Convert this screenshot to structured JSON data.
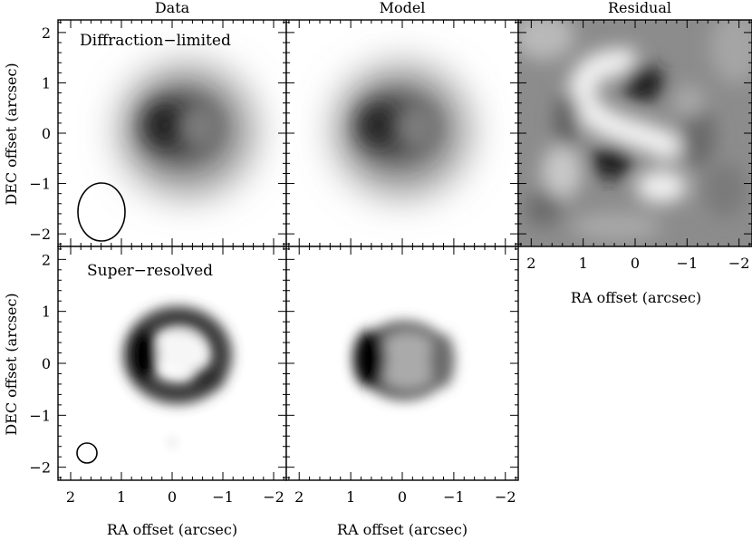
{
  "columns": {
    "data": "Data",
    "model": "Model",
    "residual": "Residual"
  },
  "rows": {
    "top": "Diffraction−limited",
    "bottom": "Super−resolved"
  },
  "axes": {
    "x_label": "RA offset (arcsec)",
    "y_label": "DEC offset (arcsec)",
    "x_ticks": [
      "2",
      "1",
      "0",
      "−1",
      "−2"
    ],
    "y_ticks": [
      "2",
      "1",
      "0",
      "−1",
      "−2"
    ],
    "x_range": [
      2.25,
      -2.25
    ],
    "y_range": [
      -2.25,
      2.25
    ]
  },
  "beams": {
    "diffraction_limited": "elliptical beam",
    "super_resolved": "circular beam"
  }
}
